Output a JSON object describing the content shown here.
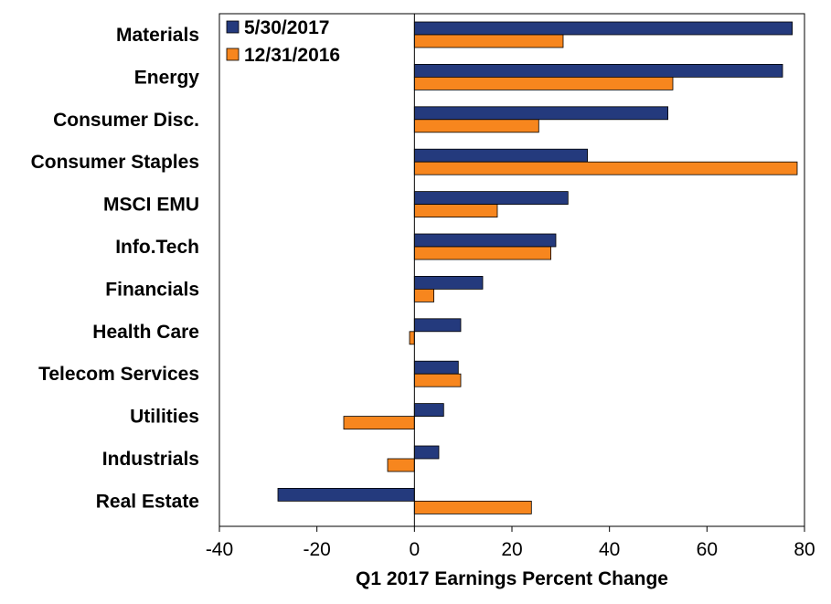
{
  "chart_data": {
    "type": "bar",
    "orientation": "horizontal",
    "title": "",
    "xlabel": "Q1 2017 Earnings Percent Change",
    "ylabel": "",
    "xlim": [
      -40,
      80
    ],
    "x_ticks": [
      -40,
      -20,
      0,
      20,
      40,
      60,
      80
    ],
    "grid": false,
    "legend_position": "top-left",
    "categories": [
      "Materials",
      "Energy",
      "Consumer Disc.",
      "Consumer Staples",
      "MSCI EMU",
      "Info.Tech",
      "Financials",
      "Health Care",
      "Telecom Services",
      "Utilities",
      "Industrials",
      "Real Estate"
    ],
    "series": [
      {
        "name": "5/30/2017",
        "color": "#243A7D",
        "values": [
          77.5,
          75.5,
          52,
          35.5,
          31.5,
          29,
          14,
          9.5,
          9,
          6,
          5,
          -28
        ]
      },
      {
        "name": "12/31/2016",
        "color": "#F7861E",
        "values": [
          30.5,
          53,
          25.5,
          78.5,
          17,
          28,
          4,
          -1,
          9.5,
          -14.5,
          -5.5,
          24
        ]
      }
    ]
  }
}
